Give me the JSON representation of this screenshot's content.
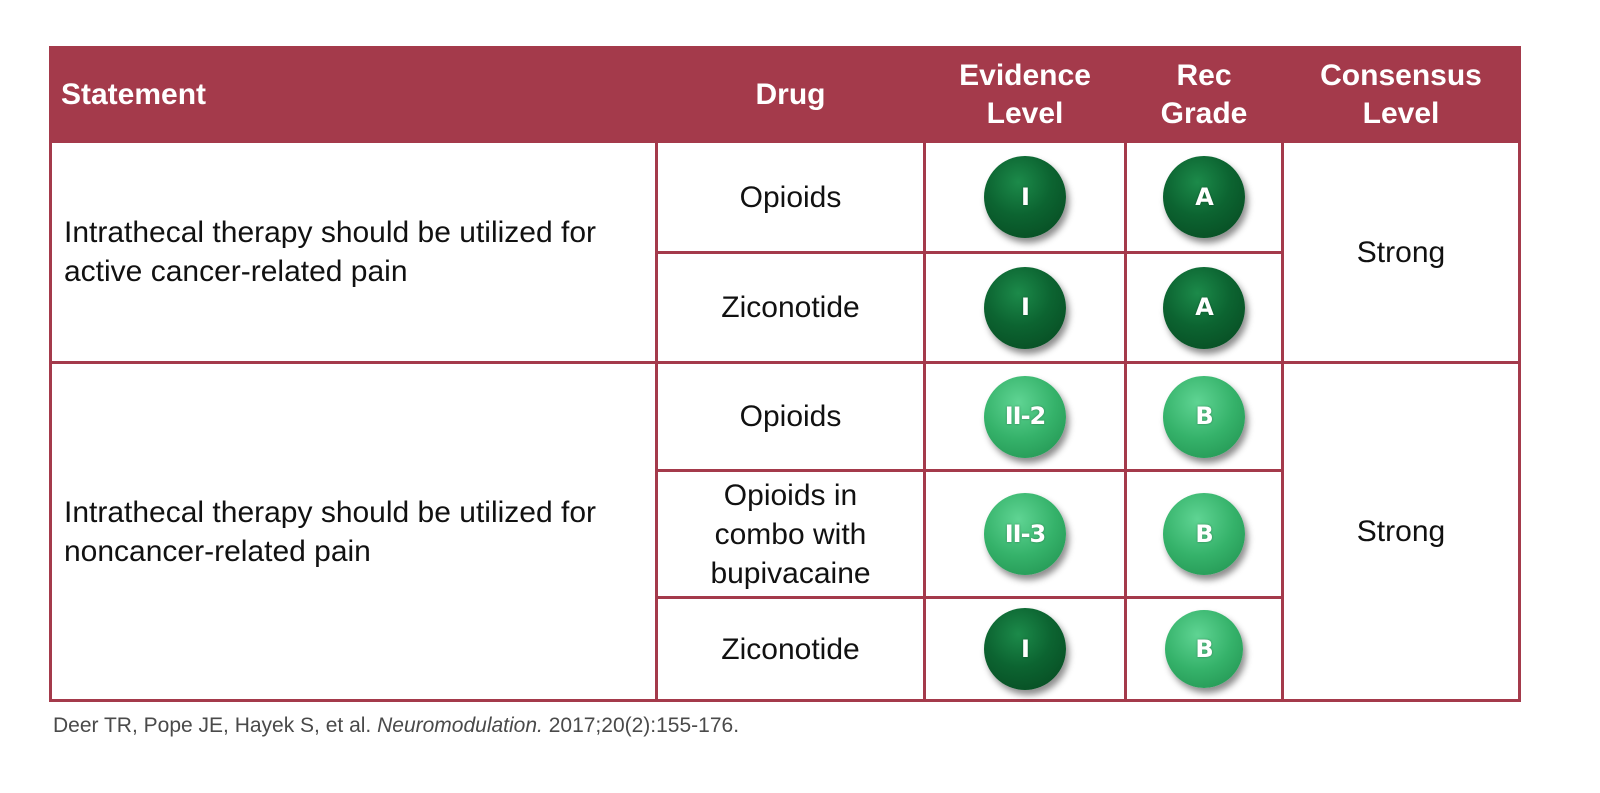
{
  "colors": {
    "header_bg": "#a43a4b",
    "level_I_circle": "#0c6431",
    "level_II_circle": "#35b26a"
  },
  "headers": {
    "statement": "Statement",
    "drug": "Drug",
    "evidence": "Evidence Level",
    "rec": "Rec Grade",
    "consensus": "Consensus Level"
  },
  "groups": [
    {
      "statement": "Intrathecal therapy should be utilized for active cancer-related pain",
      "consensus": "Strong",
      "rows": [
        {
          "drug": "Opioids",
          "evidence": "I",
          "grade": "A"
        },
        {
          "drug": "Ziconotide",
          "evidence": "I",
          "grade": "A"
        }
      ]
    },
    {
      "statement": "Intrathecal therapy should be utilized for noncancer-related pain",
      "consensus": "Strong",
      "rows": [
        {
          "drug": "Opioids",
          "evidence": "II-2",
          "grade": "B"
        },
        {
          "drug": "Opioids in combo with bupivacaine",
          "evidence": "II-3",
          "grade": "B"
        },
        {
          "drug": "Ziconotide",
          "evidence": "I",
          "grade": "B"
        }
      ]
    }
  ],
  "citation": {
    "authors": "Deer TR, Pope JE, Hayek S, et al.",
    "journal": "Neuromodulation.",
    "details": "2017;20(2):155-176."
  }
}
